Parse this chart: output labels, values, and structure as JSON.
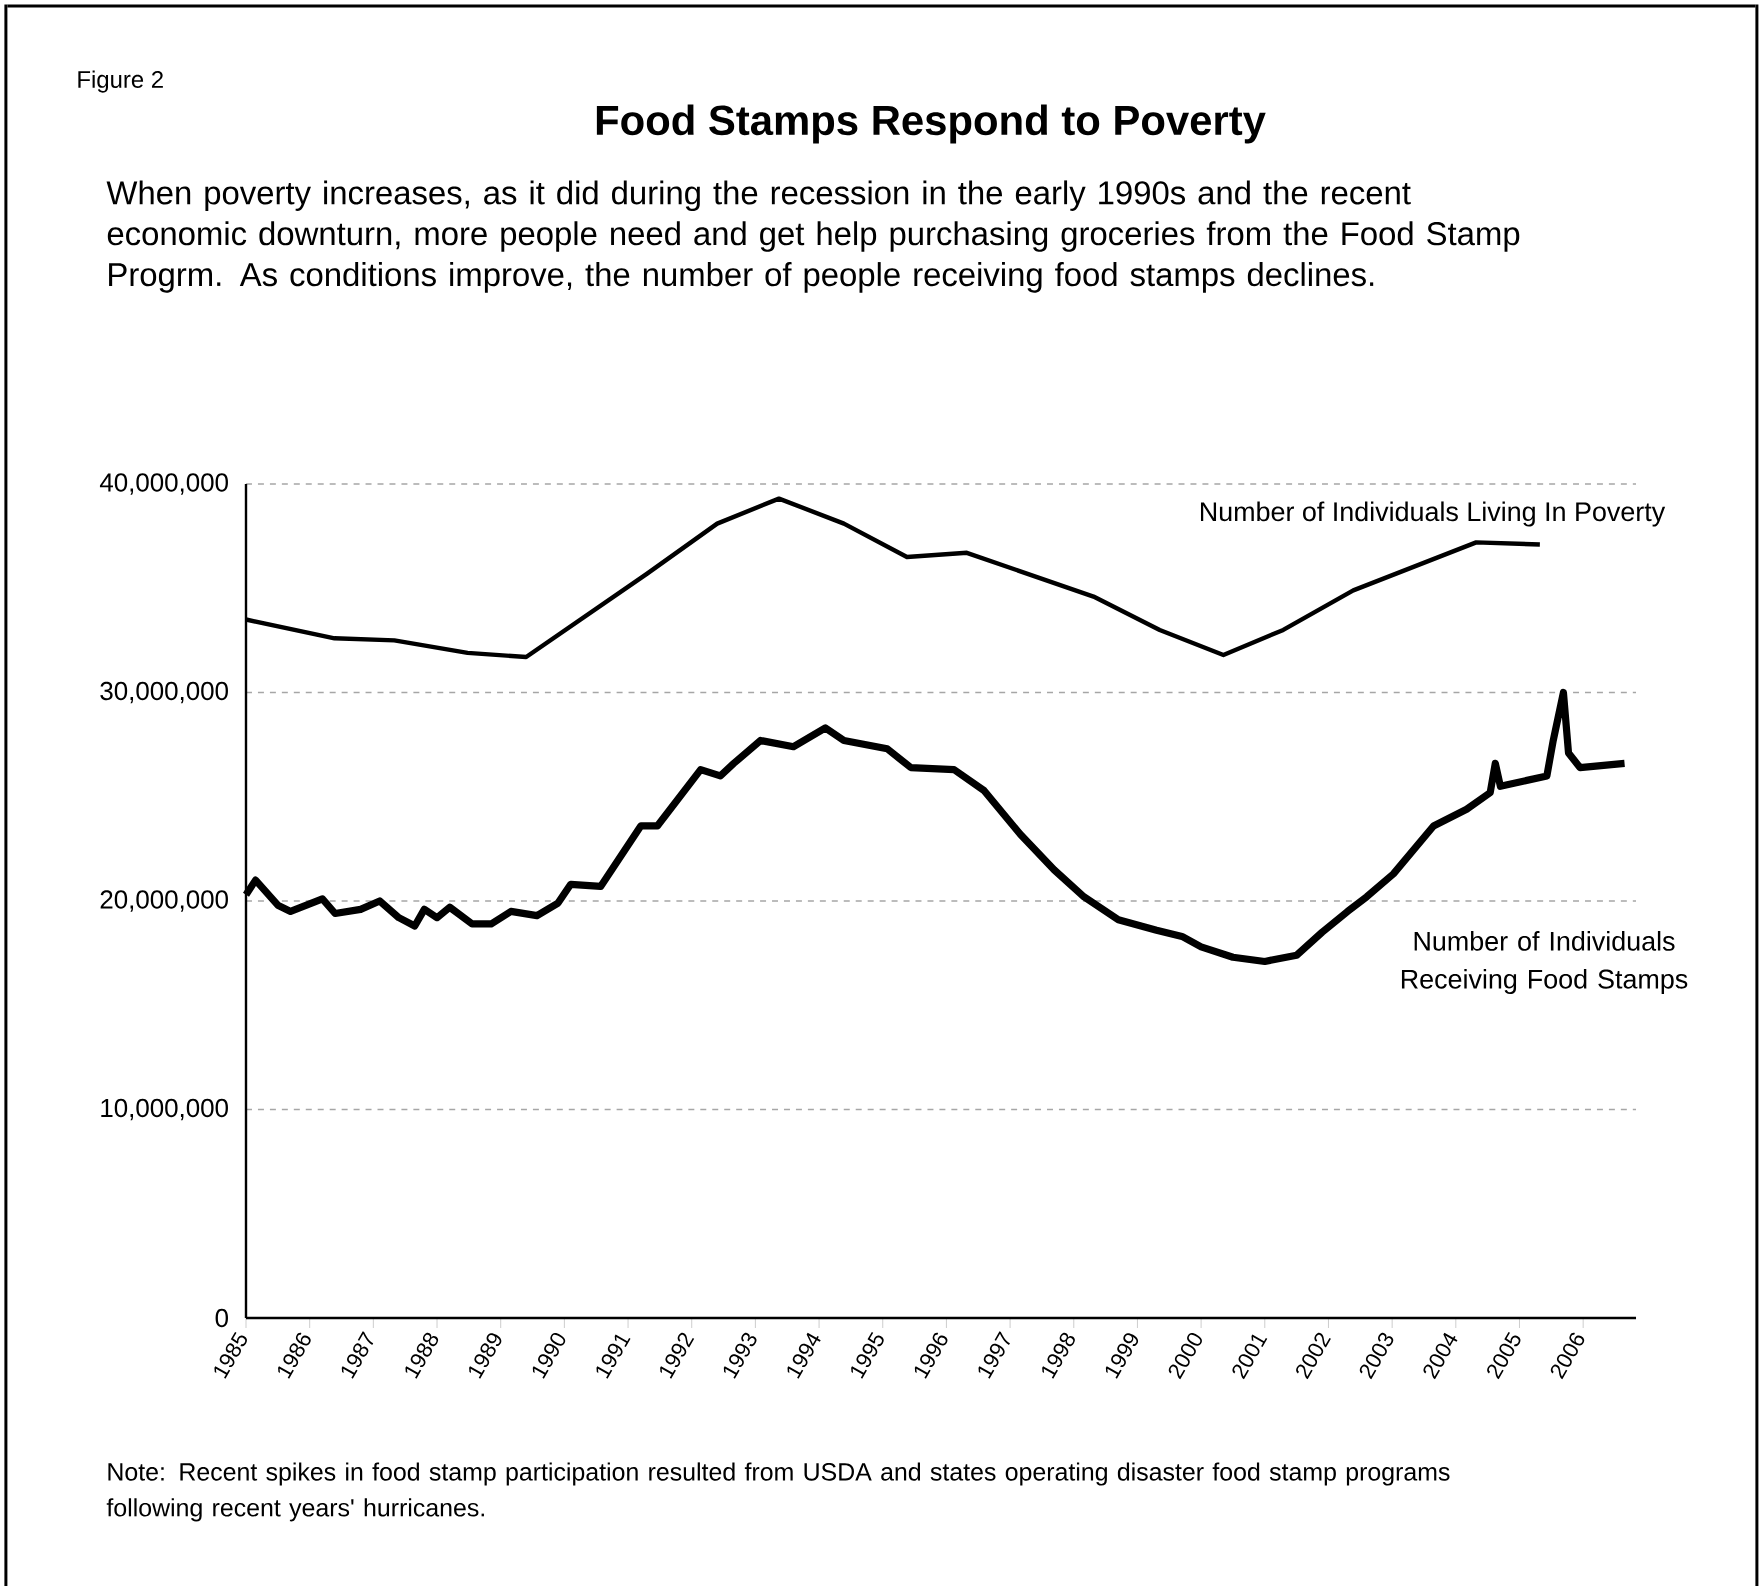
{
  "chart_data": {
    "type": "line",
    "title": "Food Stamps Respond to Poverty",
    "subtitle": "When poverty increases, as it did during the recession in the early 1990s and the recent economic downturn, more people need and get help purchasing groceries from the Food Stamp Progrm. As conditions improve, the number of people receiving food stamps declines.",
    "annotations": [
      "Figure 2",
      "Note: Recent spikes in food stamp participation resulted from USDA and states operating disaster food stamp programs following recent years' hurricanes."
    ],
    "series": [
      {
        "name": "Number of Individuals Living In Poverty",
        "color": "#000000",
        "x": [
          1985.0,
          1986.39,
          1987.33,
          1988.48,
          1989.4,
          1991.3,
          1992.4,
          1993.37,
          1994.39,
          1995.38,
          1996.32,
          1998.31,
          1999.35,
          2000.35,
          2001.29,
          2002.39,
          2004.32,
          2005.32
        ],
        "values": [
          33500000,
          32600000,
          32500000,
          31900000,
          31700000,
          35700000,
          38100000,
          39300000,
          38100000,
          36500000,
          36700000,
          34600000,
          33000000,
          31800000,
          33000000,
          34900000,
          37200000,
          37100000
        ]
      },
      {
        "name": "Number of Individuals Receiving Food Stamps",
        "color": "#000000",
        "x": [
          1985.0,
          1985.15,
          1985.5,
          1985.7,
          1986.2,
          1986.4,
          1986.8,
          1987.1,
          1987.4,
          1987.65,
          1987.8,
          1988.0,
          1988.2,
          1988.55,
          1988.85,
          1989.16,
          1989.57,
          1989.9,
          1990.1,
          1990.57,
          1991.2,
          1991.46,
          1992.14,
          1992.45,
          1992.66,
          1993.08,
          1993.6,
          1994.1,
          1994.39,
          1995.07,
          1995.44,
          1996.12,
          1996.59,
          1997.16,
          1997.69,
          1998.16,
          1998.7,
          1999.3,
          1999.7,
          2000.0,
          2000.5,
          2001.0,
          2001.5,
          2001.9,
          2002.3,
          2002.6,
          2003.02,
          2003.65,
          2004.17,
          2004.54,
          2004.62,
          2004.7,
          2005.43,
          2005.53,
          2005.69,
          2005.77,
          2005.95,
          2006.65
        ],
        "values": [
          20300000,
          21000000,
          19800000,
          19500000,
          20100000,
          19400000,
          19600000,
          20000000,
          19200000,
          18800000,
          19600000,
          19200000,
          19700000,
          18900000,
          18900000,
          19500000,
          19300000,
          19900000,
          20800000,
          20700000,
          23600000,
          23600000,
          26300000,
          26000000,
          26600000,
          27700000,
          27400000,
          28300000,
          27700000,
          27300000,
          26400000,
          26300000,
          25300000,
          23200000,
          21500000,
          20200000,
          19100000,
          18600000,
          18300000,
          17800000,
          17300000,
          17100000,
          17400000,
          18500000,
          19500000,
          20200000,
          21300000,
          23600000,
          24400000,
          25200000,
          26600000,
          25500000,
          26000000,
          27700000,
          30000000,
          27100000,
          26400000,
          26600000
        ]
      }
    ],
    "xlim": [
      1985,
      2006.83
    ],
    "xticks": [
      1985,
      1986,
      1987,
      1988,
      1989,
      1990,
      1991,
      1992,
      1993,
      1994,
      1995,
      1996,
      1997,
      1998,
      1999,
      2000,
      2001,
      2002,
      2003,
      2004,
      2005,
      2006
    ],
    "ylim": [
      0,
      40000000
    ],
    "yticks": [
      0,
      {
        "value": 10000000,
        "label": "10,000,000"
      },
      {
        "value": 20000000,
        "label": "20,000,000"
      },
      {
        "value": 30000000,
        "label": "30,000,000"
      },
      {
        "value": 40000000,
        "label": "40,000,000"
      }
    ],
    "grid": "y",
    "marker": "none",
    "line_style": "solid"
  }
}
